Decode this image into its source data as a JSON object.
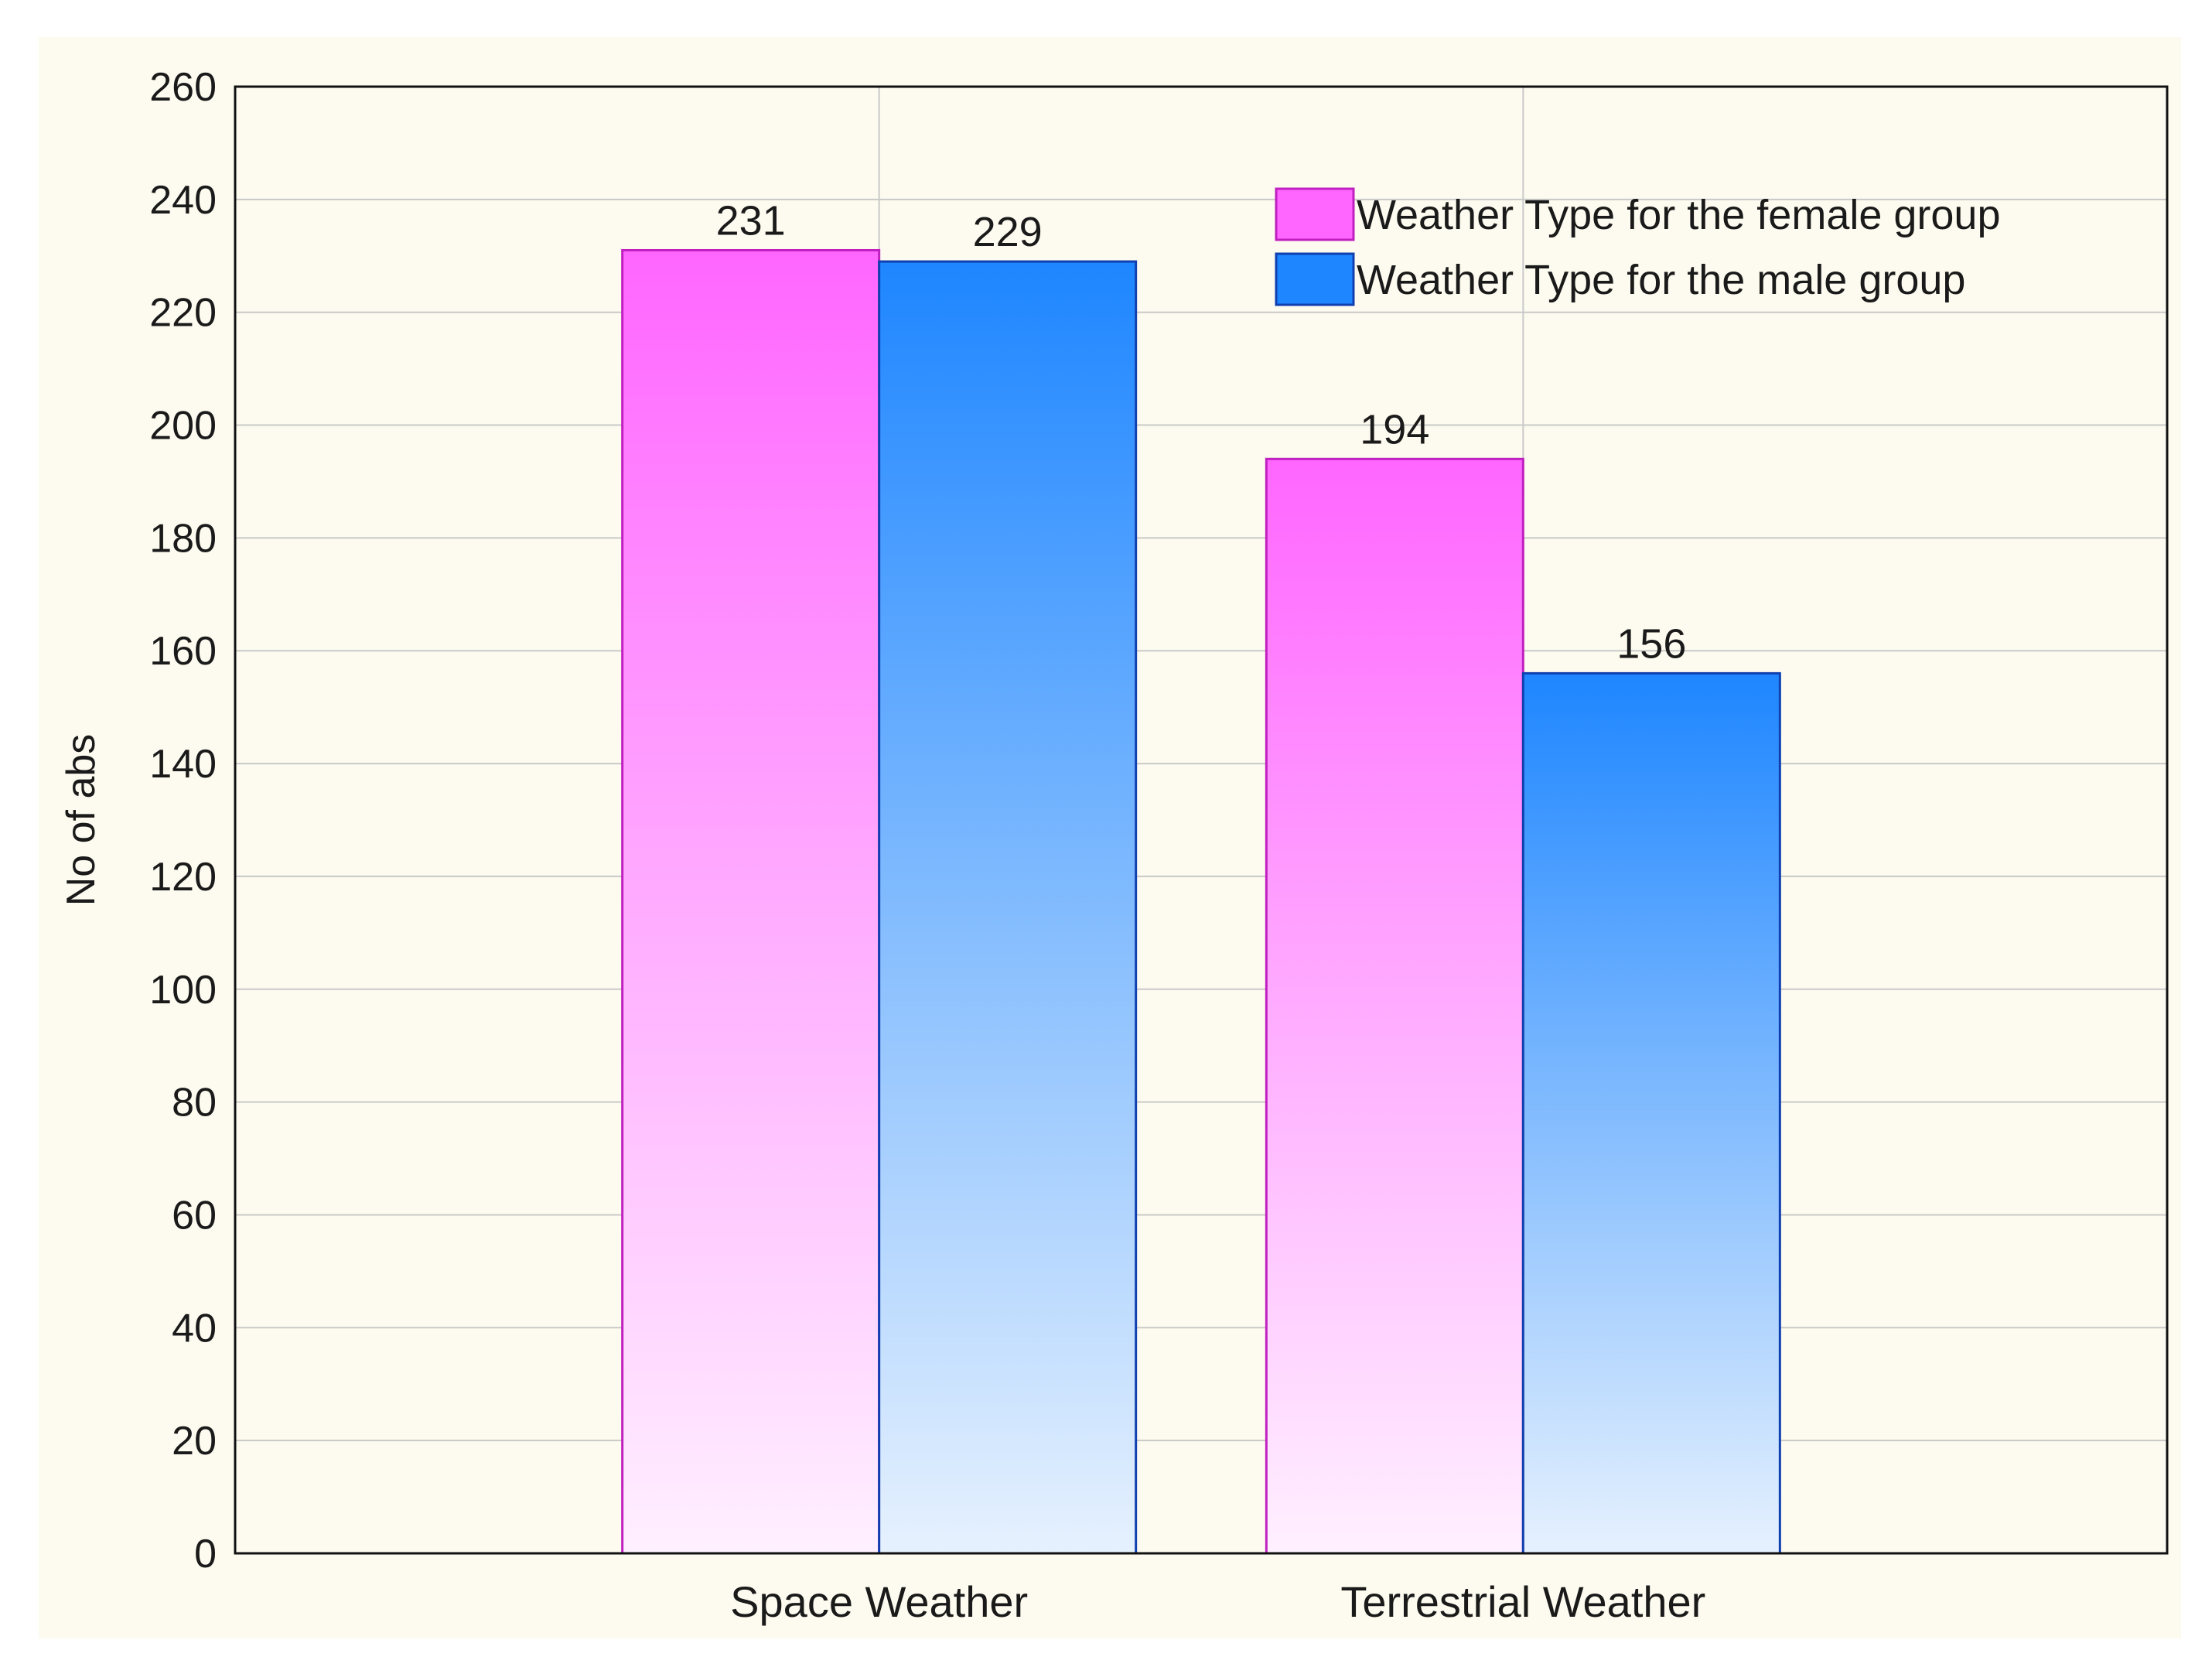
{
  "chart_data": {
    "type": "bar",
    "title": "",
    "xlabel": "",
    "ylabel": "No of abs",
    "ylim": [
      0,
      260
    ],
    "ytick_step": 20,
    "grid": true,
    "legend_position": "top-right",
    "categories": [
      "Space Weather",
      "Terrestrial Weather"
    ],
    "series": [
      {
        "name": "Weather Type for the female group",
        "values": [
          231,
          194
        ],
        "color": "#ff66ff",
        "color_light": "#fff0ff",
        "edge": "#c020c0"
      },
      {
        "name": "Weather Type for the male group",
        "values": [
          229,
          156
        ],
        "color": "#1e86ff",
        "color_light": "#e6f1fe",
        "edge": "#1040b0"
      }
    ]
  }
}
